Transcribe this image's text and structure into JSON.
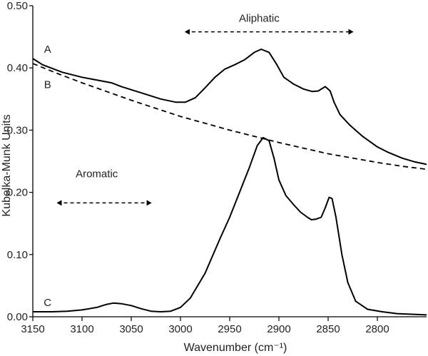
{
  "chart_data": {
    "type": "line",
    "xlabel": "Wavenumber (cm⁻¹)",
    "ylabel": "Kubelka-Munk Units",
    "xlim": [
      3150,
      2750
    ],
    "ylim": [
      0,
      0.5
    ],
    "x_reversed": true,
    "grid": false,
    "legend": "none",
    "x_ticks": [
      {
        "value": 3150,
        "label": "3150"
      },
      {
        "value": 3100,
        "label": "3100"
      },
      {
        "value": 3050,
        "label": "3050"
      },
      {
        "value": 3000,
        "label": "3000"
      },
      {
        "value": 2950,
        "label": "2950"
      },
      {
        "value": 2900,
        "label": "2900"
      },
      {
        "value": 2850,
        "label": "2850"
      },
      {
        "value": 2800,
        "label": "2800"
      }
    ],
    "y_ticks": [
      {
        "value": 0.0,
        "label": "0.00"
      },
      {
        "value": 0.1,
        "label": "0.10"
      },
      {
        "value": 0.2,
        "label": "0.20"
      },
      {
        "value": 0.3,
        "label": "0.30"
      },
      {
        "value": 0.4,
        "label": "0.40"
      },
      {
        "value": 0.5,
        "label": "0.50"
      }
    ],
    "series": [
      {
        "name": "A",
        "style": "solid",
        "color": "#000000",
        "points": [
          [
            3150,
            0.415
          ],
          [
            3140,
            0.405
          ],
          [
            3120,
            0.393
          ],
          [
            3100,
            0.385
          ],
          [
            3080,
            0.379
          ],
          [
            3070,
            0.376
          ],
          [
            3060,
            0.37
          ],
          [
            3040,
            0.36
          ],
          [
            3020,
            0.35
          ],
          [
            3005,
            0.345
          ],
          [
            2995,
            0.345
          ],
          [
            2985,
            0.352
          ],
          [
            2975,
            0.368
          ],
          [
            2965,
            0.385
          ],
          [
            2955,
            0.398
          ],
          [
            2945,
            0.405
          ],
          [
            2935,
            0.413
          ],
          [
            2925,
            0.425
          ],
          [
            2918,
            0.43
          ],
          [
            2910,
            0.425
          ],
          [
            2902,
            0.405
          ],
          [
            2895,
            0.385
          ],
          [
            2885,
            0.374
          ],
          [
            2875,
            0.366
          ],
          [
            2866,
            0.362
          ],
          [
            2860,
            0.363
          ],
          [
            2853,
            0.37
          ],
          [
            2848,
            0.363
          ],
          [
            2844,
            0.345
          ],
          [
            2838,
            0.325
          ],
          [
            2828,
            0.308
          ],
          [
            2815,
            0.29
          ],
          [
            2800,
            0.273
          ],
          [
            2790,
            0.265
          ],
          [
            2775,
            0.255
          ],
          [
            2762,
            0.249
          ],
          [
            2750,
            0.245
          ]
        ]
      },
      {
        "name": "B",
        "style": "dashed",
        "color": "#000000",
        "points": [
          [
            3150,
            0.407
          ],
          [
            3125,
            0.391
          ],
          [
            3100,
            0.376
          ],
          [
            3075,
            0.362
          ],
          [
            3050,
            0.348
          ],
          [
            3025,
            0.335
          ],
          [
            3000,
            0.322
          ],
          [
            2975,
            0.311
          ],
          [
            2950,
            0.3
          ],
          [
            2925,
            0.29
          ],
          [
            2900,
            0.28
          ],
          [
            2875,
            0.271
          ],
          [
            2850,
            0.262
          ],
          [
            2825,
            0.255
          ],
          [
            2800,
            0.248
          ],
          [
            2775,
            0.242
          ],
          [
            2750,
            0.237
          ]
        ]
      },
      {
        "name": "C",
        "style": "solid",
        "color": "#000000",
        "points": [
          [
            3150,
            0.008
          ],
          [
            3130,
            0.008
          ],
          [
            3115,
            0.009
          ],
          [
            3100,
            0.011
          ],
          [
            3085,
            0.015
          ],
          [
            3075,
            0.02
          ],
          [
            3068,
            0.022
          ],
          [
            3060,
            0.021
          ],
          [
            3050,
            0.018
          ],
          [
            3040,
            0.013
          ],
          [
            3030,
            0.009
          ],
          [
            3020,
            0.008
          ],
          [
            3010,
            0.009
          ],
          [
            3000,
            0.015
          ],
          [
            2990,
            0.03
          ],
          [
            2975,
            0.07
          ],
          [
            2960,
            0.125
          ],
          [
            2950,
            0.16
          ],
          [
            2940,
            0.2
          ],
          [
            2930,
            0.24
          ],
          [
            2922,
            0.275
          ],
          [
            2916,
            0.288
          ],
          [
            2910,
            0.283
          ],
          [
            2905,
            0.255
          ],
          [
            2900,
            0.22
          ],
          [
            2893,
            0.195
          ],
          [
            2885,
            0.18
          ],
          [
            2878,
            0.168
          ],
          [
            2871,
            0.16
          ],
          [
            2867,
            0.156
          ],
          [
            2862,
            0.157
          ],
          [
            2857,
            0.16
          ],
          [
            2853,
            0.175
          ],
          [
            2849,
            0.192
          ],
          [
            2846,
            0.19
          ],
          [
            2842,
            0.16
          ],
          [
            2836,
            0.1
          ],
          [
            2830,
            0.055
          ],
          [
            2822,
            0.025
          ],
          [
            2810,
            0.012
          ],
          [
            2795,
            0.008
          ],
          [
            2780,
            0.005
          ],
          [
            2765,
            0.004
          ],
          [
            2750,
            0.003
          ]
        ]
      }
    ],
    "annotations": {
      "aliphatic": {
        "text": "Aliphatic",
        "x": 2920,
        "y": 0.48,
        "arrow_from": 2995,
        "arrow_to": 2825,
        "arrow_y": 0.458
      },
      "aromatic": {
        "text": "Aromatic",
        "x": 3085,
        "y": 0.23,
        "arrow_from": 3125,
        "arrow_to": 3030,
        "arrow_y": 0.183
      },
      "label_A": {
        "text": "A",
        "x": 3135,
        "y": 0.43
      },
      "label_B": {
        "text": "B",
        "x": 3135,
        "y": 0.373
      },
      "label_C": {
        "text": "C",
        "x": 3135,
        "y": 0.023
      }
    }
  }
}
